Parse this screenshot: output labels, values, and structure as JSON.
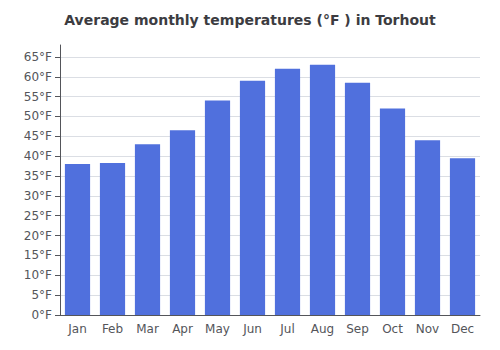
{
  "chart_data": {
    "type": "bar",
    "title": "Average monthly temperatures (°F ) in Torhout",
    "categories": [
      "Jan",
      "Feb",
      "Mar",
      "Apr",
      "May",
      "Jun",
      "Jul",
      "Aug",
      "Sep",
      "Oct",
      "Nov",
      "Dec"
    ],
    "values": [
      38.0,
      38.3,
      43.0,
      46.5,
      54.0,
      59.0,
      62.0,
      63.0,
      58.5,
      52.0,
      44.0,
      39.5
    ],
    "ylim": [
      0,
      68
    ],
    "yticks": [
      {
        "value": 0,
        "label": "0°F"
      },
      {
        "value": 5,
        "label": "5°F"
      },
      {
        "value": 10,
        "label": "10°F"
      },
      {
        "value": 15,
        "label": "15°F"
      },
      {
        "value": 20,
        "label": "20°F"
      },
      {
        "value": 25,
        "label": "25°F"
      },
      {
        "value": 30,
        "label": "30°F"
      },
      {
        "value": 35,
        "label": "35°F"
      },
      {
        "value": 40,
        "label": "40°F"
      },
      {
        "value": 45,
        "label": "45°F"
      },
      {
        "value": 50,
        "label": "50°F"
      },
      {
        "value": 55,
        "label": "55°F"
      },
      {
        "value": 60,
        "label": "60°F"
      },
      {
        "value": 65,
        "label": "65°F"
      }
    ],
    "grid": true
  }
}
